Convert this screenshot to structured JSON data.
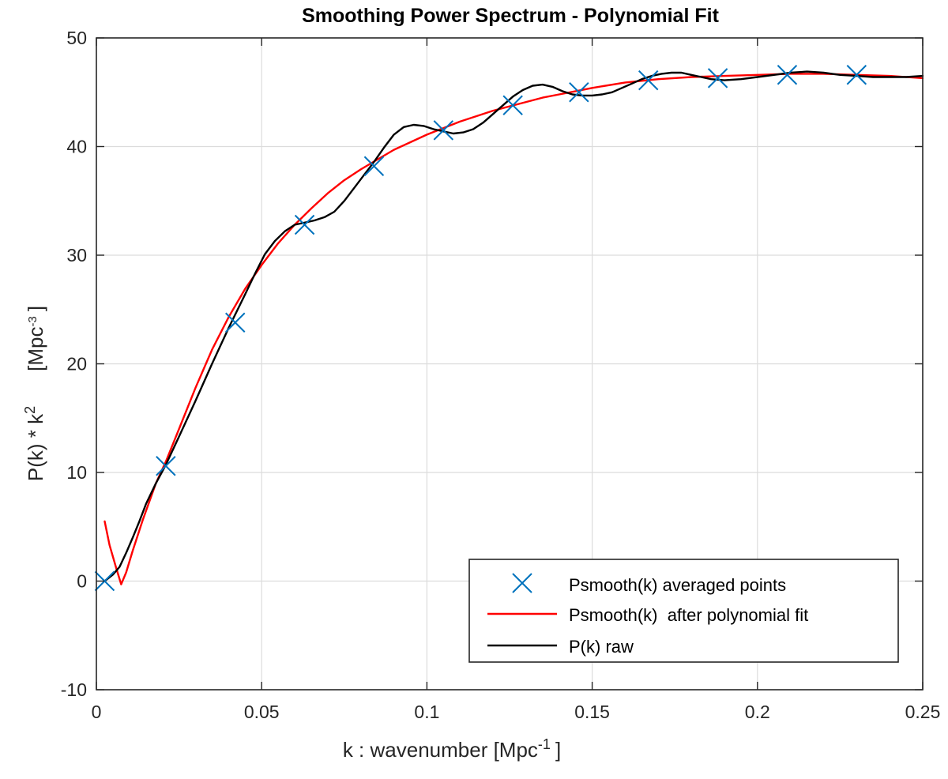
{
  "chart_data": {
    "type": "line",
    "title": "Smoothing Power Spectrum - Polynomial Fit",
    "xlabel": "k : wavenumber  [Mpc",
    "xlabel_sup": "-1",
    "xlabel_end": "]",
    "ylabel": "P(k) * k",
    "ylabel_sup": "2",
    "ylabel_unit": "[Mpc",
    "ylabel_unit_sup": "-3",
    "ylabel_unit_end": "]",
    "xlim": [
      0,
      0.25
    ],
    "ylim": [
      -10,
      50
    ],
    "xticks": [
      0,
      0.05,
      0.1,
      0.15,
      0.2,
      0.25
    ],
    "xtick_labels": [
      "0",
      "0.05",
      "0.1",
      "0.15",
      "0.2",
      "0.25"
    ],
    "yticks": [
      -10,
      0,
      10,
      20,
      30,
      40,
      50
    ],
    "ytick_labels": [
      "-10",
      "0",
      "10",
      "20",
      "30",
      "40",
      "50"
    ],
    "grid": true,
    "legend_position": "bottom-right",
    "series": [
      {
        "name": "Psmooth(k) averaged points",
        "kind": "markers",
        "marker": "x",
        "color": "#0072BD",
        "x": [
          0.0025,
          0.021,
          0.042,
          0.063,
          0.084,
          0.105,
          0.126,
          0.146,
          0.167,
          0.188,
          0.209,
          0.23
        ],
        "y": [
          0,
          10.6,
          23.8,
          32.8,
          38.2,
          41.5,
          43.8,
          45.0,
          46.1,
          46.3,
          46.6,
          46.6
        ]
      },
      {
        "name": "Psmooth(k)  after polynomial fit",
        "kind": "line",
        "color": "#FF0000",
        "x": [
          0.0025,
          0.004,
          0.006,
          0.0075,
          0.009,
          0.011,
          0.014,
          0.018,
          0.021,
          0.025,
          0.03,
          0.035,
          0.04,
          0.045,
          0.05,
          0.055,
          0.06,
          0.065,
          0.07,
          0.075,
          0.08,
          0.085,
          0.09,
          0.095,
          0.1,
          0.105,
          0.11,
          0.115,
          0.12,
          0.125,
          0.13,
          0.135,
          0.14,
          0.145,
          0.15,
          0.16,
          0.17,
          0.18,
          0.19,
          0.2,
          0.21,
          0.22,
          0.23,
          0.24,
          0.25
        ],
        "y": [
          5.5,
          3.3,
          1.2,
          -0.3,
          0.8,
          2.8,
          5.6,
          9.0,
          11.0,
          14.0,
          17.8,
          21.3,
          24.3,
          26.9,
          29.1,
          31.1,
          32.8,
          34.3,
          35.7,
          36.9,
          37.9,
          38.8,
          39.7,
          40.4,
          41.1,
          41.7,
          42.3,
          42.8,
          43.3,
          43.7,
          44.1,
          44.5,
          44.8,
          45.1,
          45.4,
          45.9,
          46.2,
          46.4,
          46.5,
          46.6,
          46.7,
          46.7,
          46.6,
          46.5,
          46.3
        ]
      },
      {
        "name": "P(k) raw",
        "kind": "line",
        "color": "#000000",
        "x": [
          0.0025,
          0.005,
          0.007,
          0.009,
          0.011,
          0.013,
          0.015,
          0.018,
          0.021,
          0.025,
          0.03,
          0.035,
          0.04,
          0.045,
          0.048,
          0.051,
          0.054,
          0.057,
          0.06,
          0.063,
          0.066,
          0.069,
          0.072,
          0.075,
          0.078,
          0.081,
          0.084,
          0.087,
          0.09,
          0.093,
          0.096,
          0.099,
          0.102,
          0.105,
          0.108,
          0.111,
          0.114,
          0.117,
          0.12,
          0.123,
          0.126,
          0.129,
          0.132,
          0.135,
          0.138,
          0.141,
          0.144,
          0.147,
          0.15,
          0.153,
          0.156,
          0.159,
          0.162,
          0.165,
          0.168,
          0.171,
          0.174,
          0.177,
          0.18,
          0.183,
          0.186,
          0.19,
          0.195,
          0.2,
          0.205,
          0.21,
          0.215,
          0.22,
          0.225,
          0.23,
          0.235,
          0.24,
          0.245,
          0.25
        ],
        "y": [
          0.0,
          0.6,
          1.3,
          2.6,
          4.0,
          5.5,
          7.1,
          9.0,
          10.7,
          13.3,
          16.6,
          20.0,
          23.3,
          26.4,
          28.3,
          30.1,
          31.3,
          32.2,
          32.8,
          33.0,
          33.2,
          33.5,
          34.0,
          35.0,
          36.2,
          37.4,
          38.6,
          39.9,
          41.1,
          41.8,
          42.0,
          41.9,
          41.6,
          41.4,
          41.2,
          41.3,
          41.6,
          42.2,
          43.0,
          43.8,
          44.6,
          45.2,
          45.6,
          45.7,
          45.5,
          45.1,
          44.8,
          44.7,
          44.7,
          44.8,
          45.0,
          45.4,
          45.8,
          46.2,
          46.5,
          46.7,
          46.8,
          46.8,
          46.6,
          46.4,
          46.2,
          46.1,
          46.2,
          46.4,
          46.6,
          46.8,
          46.9,
          46.8,
          46.6,
          46.5,
          46.4,
          46.4,
          46.4,
          46.5
        ]
      }
    ]
  }
}
